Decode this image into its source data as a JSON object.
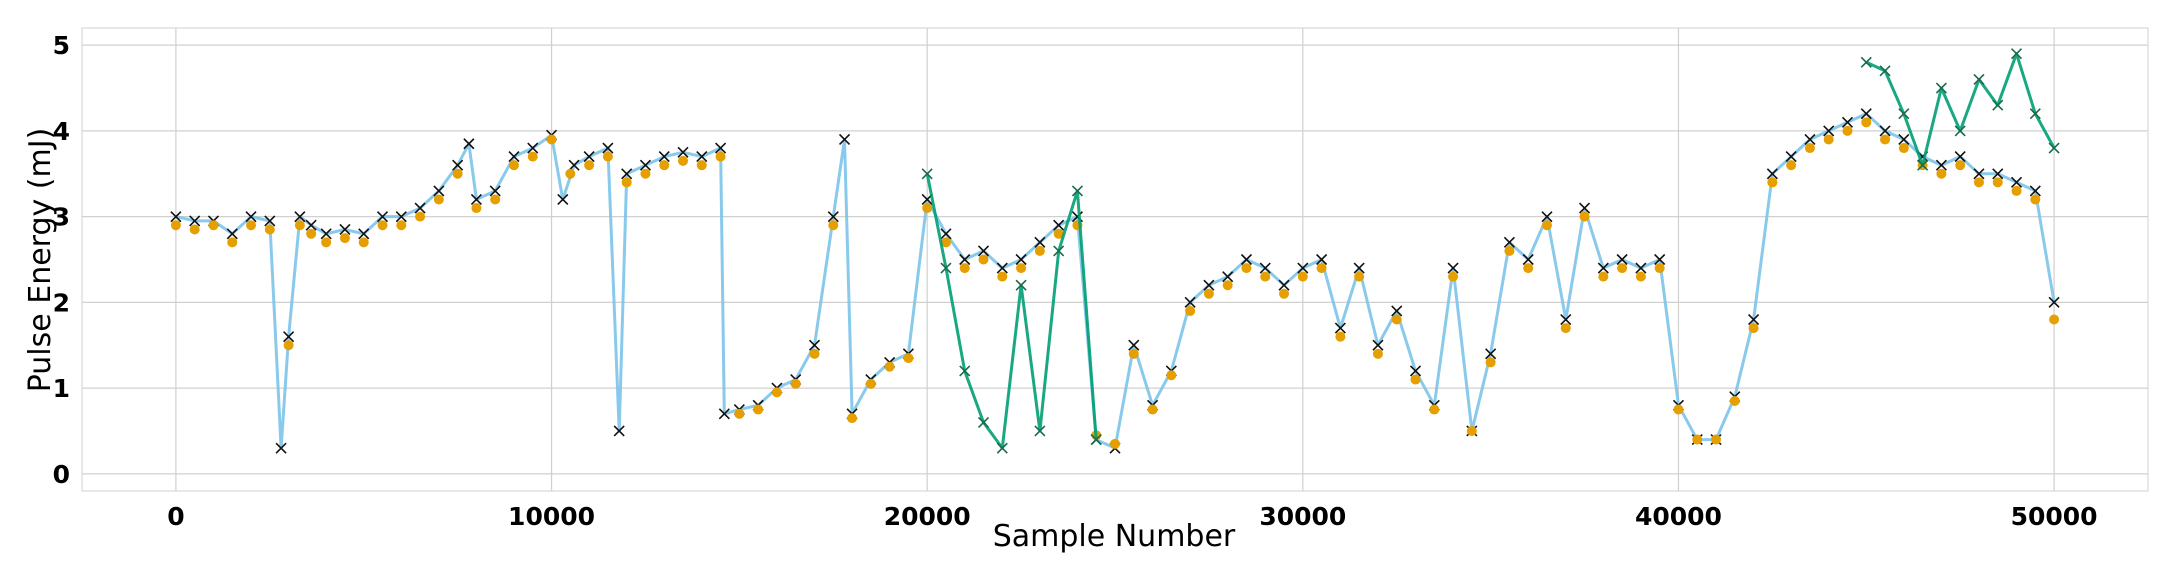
{
  "chart_data": {
    "type": "line",
    "title": "",
    "xlabel": "Sample Number",
    "ylabel": "Pulse Energy (mJ)",
    "xlim": [
      -2500,
      52500
    ],
    "ylim": [
      -0.2,
      5.2
    ],
    "xticks": [
      0,
      10000,
      20000,
      30000,
      40000,
      50000
    ],
    "xtick_labels": [
      "0",
      "10000",
      "20000",
      "30000",
      "40000",
      "50000"
    ],
    "yticks": [
      0,
      1,
      2,
      3,
      4,
      5
    ],
    "ytick_labels": [
      "0",
      "1",
      "2",
      "3",
      "4",
      "5"
    ],
    "grid": true,
    "legend": "none",
    "colors": {
      "measured_line": "#7cc4ea",
      "measured_markers": "#111111",
      "prediction_markers": "#e69f00",
      "anomaly_line": "#009e73",
      "anomaly_markers": "#1a6b4a"
    },
    "series": [
      {
        "style": "line+x-markers",
        "x": [
          0,
          500,
          1000,
          1500,
          2000,
          2500,
          2800,
          3000,
          3300,
          3600,
          4000,
          4500,
          5000,
          5500,
          6000,
          6500,
          7000,
          7500,
          7800,
          8000,
          8500,
          9000,
          9500,
          10000,
          10300,
          10600,
          11000,
          11500,
          11800,
          12000,
          12500,
          13000,
          13500,
          14000,
          14500,
          14600,
          15000,
          15500,
          16000,
          16500,
          17000,
          17500,
          17800,
          18000,
          18500,
          19000,
          19500,
          20000,
          20500,
          21000,
          21500,
          22000,
          22500,
          23000,
          23500,
          24000,
          24500,
          25000,
          25500,
          26000,
          26500,
          27000,
          27500,
          28000,
          28500,
          29000,
          29500,
          30000,
          30500,
          31000,
          31500,
          32000,
          32500,
          33000,
          33500,
          34000,
          34500,
          35000,
          35500,
          36000,
          36500,
          37000,
          37500,
          38000,
          38500,
          39000,
          39500,
          40000,
          40500,
          41000,
          41500,
          42000,
          42500,
          43000,
          43500,
          44000,
          44500,
          45000,
          45500,
          46000,
          46500,
          47000,
          47500,
          48000,
          48500,
          49000,
          49500,
          50000
        ],
        "y": [
          3.0,
          2.95,
          2.95,
          2.8,
          3.0,
          2.95,
          0.3,
          1.6,
          3.0,
          2.9,
          2.8,
          2.85,
          2.8,
          3.0,
          3.0,
          3.1,
          3.3,
          3.6,
          3.85,
          3.2,
          3.3,
          3.7,
          3.8,
          3.95,
          3.2,
          3.6,
          3.7,
          3.8,
          0.5,
          3.5,
          3.6,
          3.7,
          3.75,
          3.7,
          3.8,
          0.7,
          0.75,
          0.8,
          1.0,
          1.1,
          1.5,
          3.0,
          3.9,
          0.7,
          1.1,
          1.3,
          1.4,
          3.2,
          2.8,
          2.5,
          2.6,
          2.4,
          2.5,
          2.7,
          2.9,
          3.0,
          0.4,
          0.3,
          1.5,
          0.8,
          1.2,
          2.0,
          2.2,
          2.3,
          2.5,
          2.4,
          2.2,
          2.4,
          2.5,
          1.7,
          2.4,
          1.5,
          1.9,
          1.2,
          0.8,
          2.4,
          0.5,
          1.4,
          2.7,
          2.5,
          3.0,
          1.8,
          3.1,
          2.4,
          2.5,
          2.4,
          2.5,
          0.8,
          0.4,
          0.4,
          0.9,
          1.8,
          3.5,
          3.7,
          3.9,
          4.0,
          4.1,
          4.2,
          4.0,
          3.9,
          3.7,
          3.6,
          3.7,
          3.5,
          3.5,
          3.4,
          3.3,
          2.0
        ]
      },
      {
        "style": "dot-markers",
        "x": [
          0,
          500,
          1000,
          1500,
          2000,
          2500,
          3000,
          3300,
          3600,
          4000,
          4500,
          5000,
          5500,
          6000,
          6500,
          7000,
          7500,
          8000,
          8500,
          9000,
          9500,
          10000,
          10500,
          11000,
          11500,
          12000,
          12500,
          13000,
          13500,
          14000,
          14500,
          15000,
          15500,
          16000,
          16500,
          17000,
          17500,
          18000,
          18500,
          19000,
          19500,
          20000,
          20500,
          21000,
          21500,
          22000,
          22500,
          23000,
          23500,
          24000,
          24500,
          25000,
          25500,
          26000,
          26500,
          27000,
          27500,
          28000,
          28500,
          29000,
          29500,
          30000,
          30500,
          31000,
          31500,
          32000,
          32500,
          33000,
          33500,
          34000,
          34500,
          35000,
          35500,
          36000,
          36500,
          37000,
          37500,
          38000,
          38500,
          39000,
          39500,
          40000,
          40500,
          41000,
          41500,
          42000,
          42500,
          43000,
          43500,
          44000,
          44500,
          45000,
          45500,
          46000,
          46500,
          47000,
          47500,
          48000,
          48500,
          49000,
          49500,
          50000
        ],
        "y": [
          2.9,
          2.85,
          2.9,
          2.7,
          2.9,
          2.85,
          1.5,
          2.9,
          2.8,
          2.7,
          2.75,
          2.7,
          2.9,
          2.9,
          3.0,
          3.2,
          3.5,
          3.1,
          3.2,
          3.6,
          3.7,
          3.9,
          3.5,
          3.6,
          3.7,
          3.4,
          3.5,
          3.6,
          3.65,
          3.6,
          3.7,
          0.7,
          0.75,
          0.95,
          1.05,
          1.4,
          2.9,
          0.65,
          1.05,
          1.25,
          1.35,
          3.1,
          2.7,
          2.4,
          2.5,
          2.3,
          2.4,
          2.6,
          2.8,
          2.9,
          0.45,
          0.35,
          1.4,
          0.75,
          1.15,
          1.9,
          2.1,
          2.2,
          2.4,
          2.3,
          2.1,
          2.3,
          2.4,
          1.6,
          2.3,
          1.4,
          1.8,
          1.1,
          0.75,
          2.3,
          0.5,
          1.3,
          2.6,
          2.4,
          2.9,
          1.7,
          3.0,
          2.3,
          2.4,
          2.3,
          2.4,
          0.75,
          0.4,
          0.4,
          0.85,
          1.7,
          3.4,
          3.6,
          3.8,
          3.9,
          4.0,
          4.1,
          3.9,
          3.8,
          3.6,
          3.5,
          3.6,
          3.4,
          3.4,
          3.3,
          3.2,
          1.8
        ]
      },
      {
        "style": "line+x-markers",
        "x": [
          20000,
          20500,
          21000,
          21500,
          22000,
          22500,
          23000,
          23500,
          24000,
          24500,
          45000,
          45500,
          46000,
          46500,
          47000,
          47500,
          48000,
          48500,
          49000,
          49500,
          50000
        ],
        "y": [
          3.5,
          2.4,
          1.2,
          0.6,
          0.3,
          2.2,
          0.5,
          2.6,
          3.3,
          0.4,
          4.8,
          4.7,
          4.2,
          3.6,
          4.5,
          4.0,
          4.6,
          4.3,
          4.9,
          4.2,
          3.8
        ]
      }
    ]
  }
}
